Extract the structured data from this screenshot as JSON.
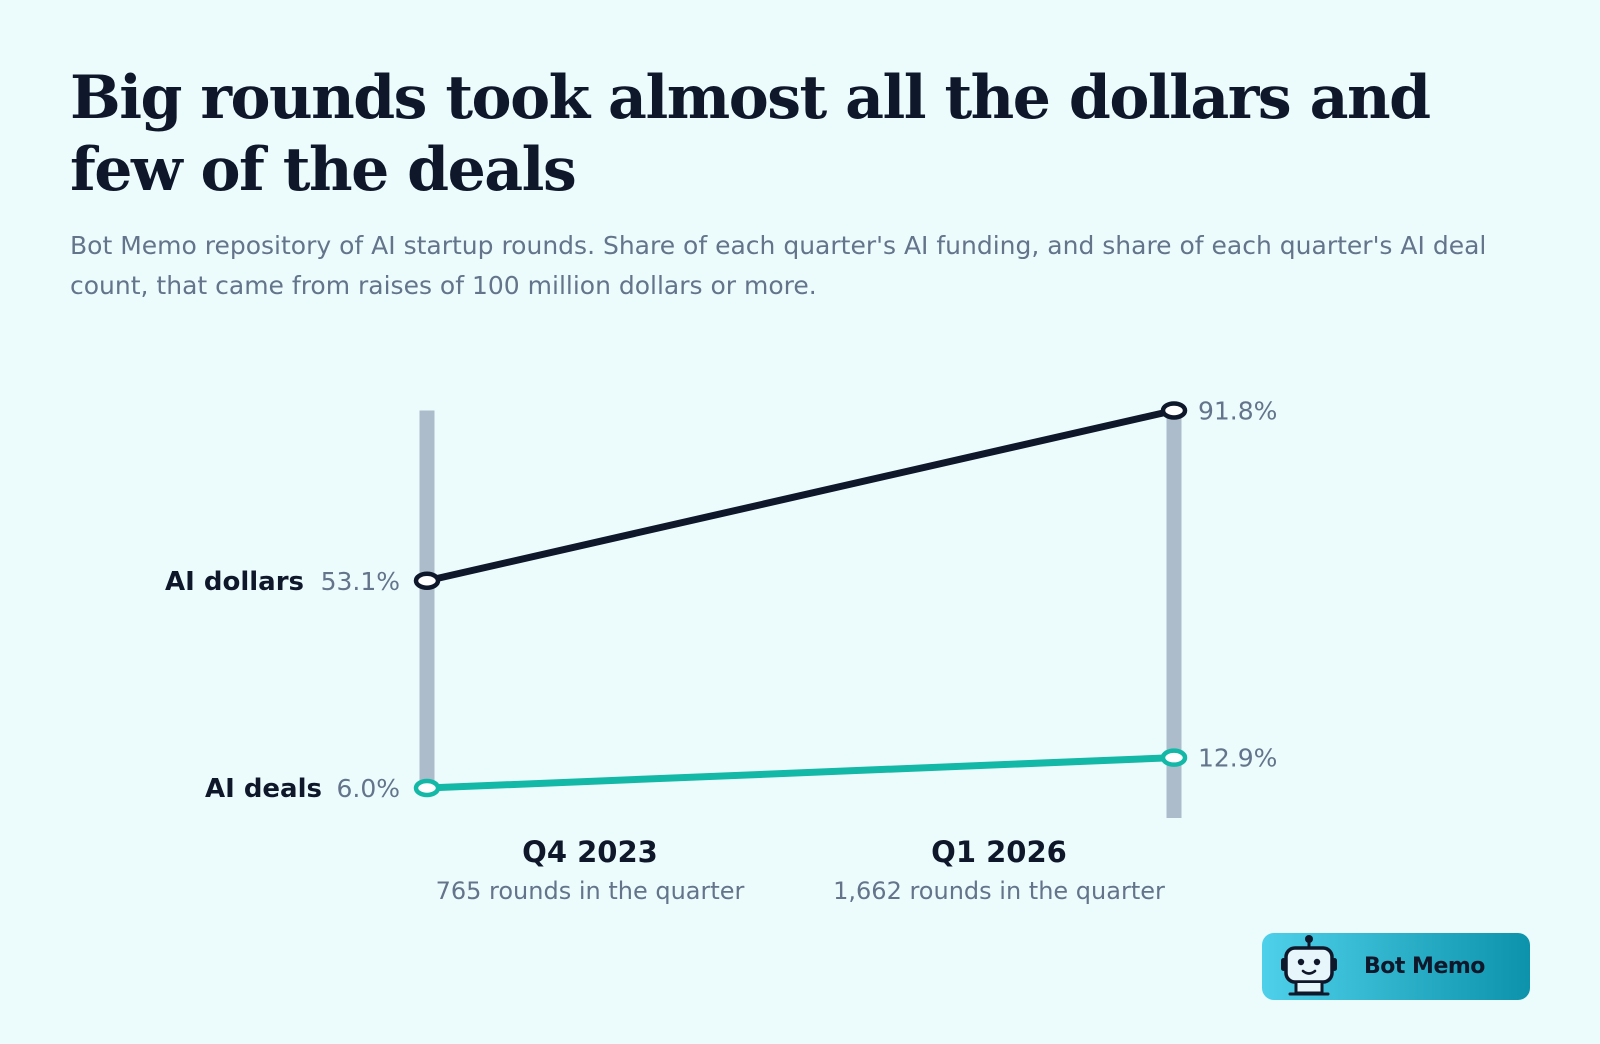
{
  "title": "Big rounds took almost all the dollars and few of the deals",
  "subtitle": "Bot Memo repository of AI startup rounds. Share of each quarter's AI funding, and share of each quarter's AI deal count, that came from raises of 100 million dollars or more.",
  "brand": {
    "name": "Bot Memo",
    "logo_icon": "robot-icon"
  },
  "colors": {
    "background": "#ecfcfd",
    "axis_bar": "#adbcca",
    "dollars_line": "#0f172a",
    "deals_line": "#14b8a6",
    "label_dark": "#0f172a",
    "label_muted": "#64748b"
  },
  "chart_data": {
    "type": "line",
    "subtype": "slope",
    "categories": [
      "Q4 2023",
      "Q1 2026"
    ],
    "category_notes": [
      "765 rounds in the quarter",
      "1,662 rounds in the quarter"
    ],
    "series": [
      {
        "name": "AI dollars",
        "values": [
          53.1,
          91.8
        ],
        "labels": [
          "53.1%",
          "91.8%"
        ],
        "color": "#0f172a"
      },
      {
        "name": "AI deals",
        "values": [
          6.0,
          12.9
        ],
        "labels": [
          "6.0%",
          "12.9%"
        ],
        "color": "#14b8a6"
      }
    ],
    "unit": "%",
    "grid": false,
    "legend": "direct-labels-left"
  }
}
